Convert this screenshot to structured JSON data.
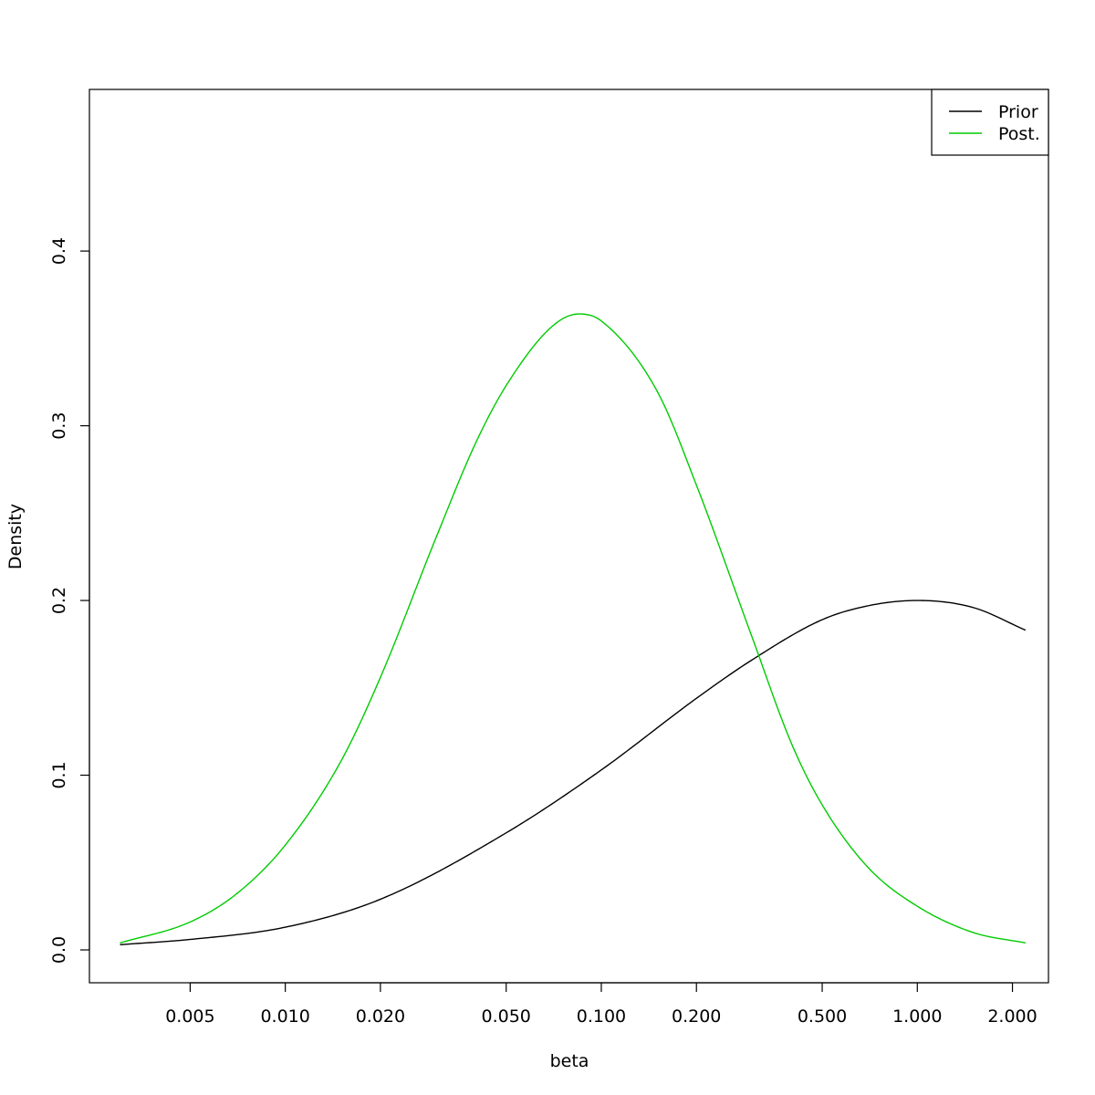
{
  "chart_data": {
    "type": "line",
    "title": "",
    "xlabel": "beta",
    "ylabel": "Density",
    "x_scale": "log",
    "xlim": [
      0.0024,
      2.6
    ],
    "ylim": [
      -0.0188,
      0.4925
    ],
    "x_ticks": [
      0.005,
      0.01,
      0.02,
      0.05,
      0.1,
      0.2,
      0.5,
      1.0,
      2.0
    ],
    "x_tick_labels": [
      "0.005",
      "0.010",
      "0.020",
      "0.050",
      "0.100",
      "0.200",
      "0.500",
      "1.000",
      "2.000"
    ],
    "y_ticks": [
      0.0,
      0.1,
      0.2,
      0.3,
      0.4
    ],
    "y_tick_labels": [
      "0.0",
      "0.1",
      "0.2",
      "0.3",
      "0.4"
    ],
    "grid": false,
    "legend_position": "top-right",
    "series": [
      {
        "name": "Prior",
        "color": "#000000",
        "x": [
          0.003,
          0.005,
          0.01,
          0.02,
          0.05,
          0.1,
          0.2,
          0.3,
          0.5,
          0.7,
          1.0,
          1.5,
          2.2
        ],
        "y": [
          0.003,
          0.006,
          0.013,
          0.029,
          0.067,
          0.103,
          0.144,
          0.166,
          0.189,
          0.197,
          0.2,
          0.196,
          0.183
        ]
      },
      {
        "name": "Post.",
        "color": "#00cc00",
        "x": [
          0.003,
          0.005,
          0.007,
          0.01,
          0.015,
          0.02,
          0.03,
          0.04,
          0.05,
          0.07,
          0.085,
          0.1,
          0.15,
          0.2,
          0.3,
          0.4,
          0.5,
          0.7,
          1.0,
          1.5,
          2.2
        ],
        "y": [
          0.004,
          0.016,
          0.032,
          0.06,
          0.108,
          0.156,
          0.236,
          0.29,
          0.323,
          0.357,
          0.364,
          0.36,
          0.32,
          0.266,
          0.179,
          0.118,
          0.083,
          0.047,
          0.025,
          0.01,
          0.004
        ]
      }
    ]
  }
}
